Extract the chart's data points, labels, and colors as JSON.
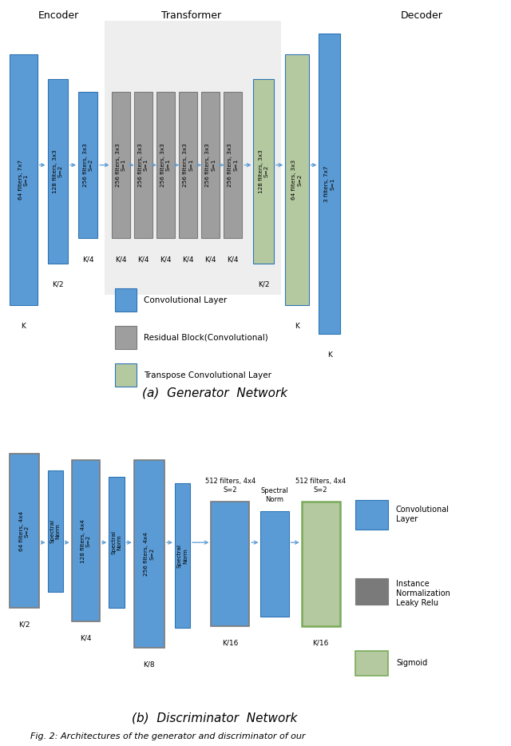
{
  "fig_width": 6.4,
  "fig_height": 9.34,
  "bg_color": "#ffffff",
  "blue_color": "#5b9bd5",
  "green_color": "#b5c9a0",
  "green_border": "#7aab5a",
  "gray_border": "#7a7a7a",
  "blue_border": "#2e75b6",
  "transformer_bg": "#eeeeee",
  "arrow_color": "#5b9bd5",
  "gen_title": "(a)  Generator  Network",
  "disc_title": "(b)  Discriminator  Network",
  "caption": "Fig. 2: Architectures of the generator and discriminator of our",
  "encoder_label": "Encoder",
  "transformer_label": "Transformer",
  "decoder_label": "Decoder"
}
